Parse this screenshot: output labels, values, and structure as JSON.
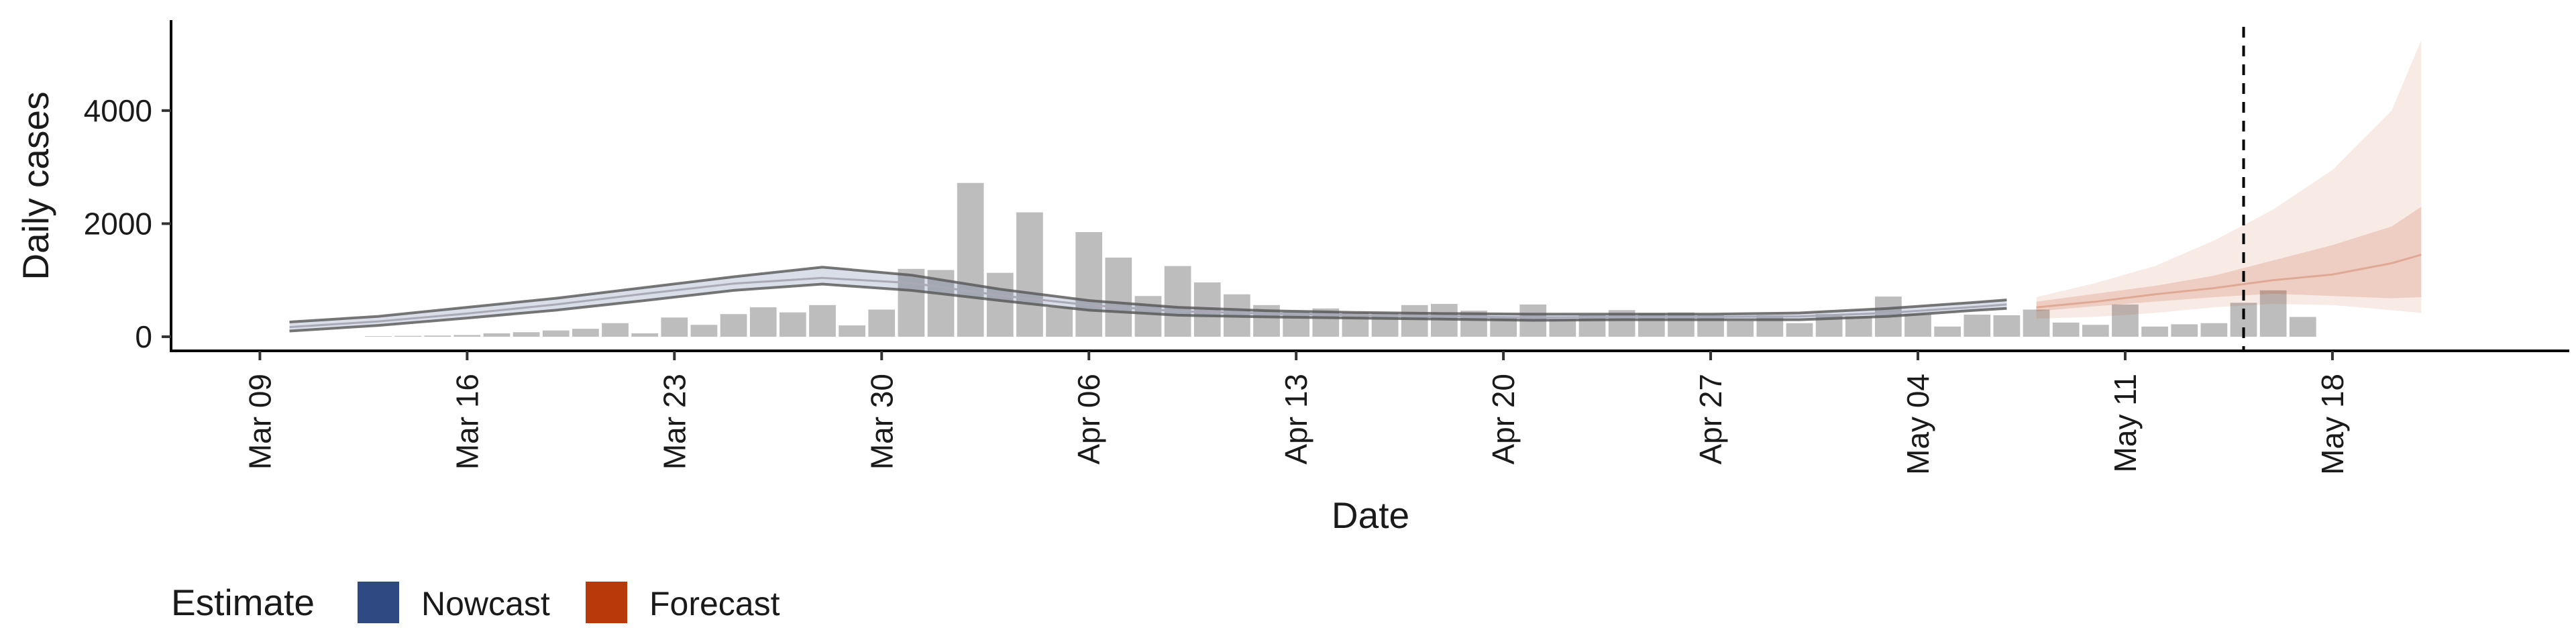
{
  "chart_data": {
    "type": "bar",
    "xlabel": "Date",
    "ylabel": "Daily cases",
    "ylim": [
      -250,
      5600
    ],
    "yticks": [
      0,
      2000,
      4000
    ],
    "x_ticks": [
      "2020-03-09",
      "2020-03-16",
      "2020-03-23",
      "2020-03-30",
      "2020-04-06",
      "2020-04-13",
      "2020-04-20",
      "2020-04-27",
      "2020-05-04",
      "2020-05-11",
      "2020-05-18"
    ],
    "x_tick_labels": [
      "Mar 09",
      "Mar 16",
      "Mar 23",
      "Mar 30",
      "Apr 06",
      "Apr 13",
      "Apr 20",
      "Apr 27",
      "May 04",
      "May 11",
      "May 18"
    ],
    "xlim": [
      "2020-03-06",
      "2020-05-26"
    ],
    "grid": false,
    "legend_position": "bottom-left",
    "colors": {
      "bars": "#bdbdbd",
      "nowcast": "#2f4a82",
      "forecast": "#b83a0b",
      "median_line": "#555555"
    },
    "vertical_line_date": "2020-05-15",
    "bars": {
      "start_date": "2020-03-13",
      "values": [
        10,
        15,
        20,
        30,
        60,
        80,
        110,
        140,
        240,
        60,
        340,
        210,
        400,
        520,
        430,
        560,
        200,
        480,
        1200,
        1180,
        2720,
        1130,
        2200,
        520,
        1850,
        1400,
        720,
        1250,
        960,
        750,
        560,
        440,
        500,
        430,
        420,
        560,
        580,
        460,
        360,
        570,
        310,
        380,
        470,
        420,
        430,
        380,
        280,
        380,
        240,
        400,
        360,
        710,
        400,
        180,
        390,
        380,
        480,
        250,
        210,
        570,
        180,
        220,
        240,
        600,
        820,
        350
      ]
    },
    "series": [
      {
        "name": "Nowcast",
        "x": [
          "2020-03-10",
          "2020-03-13",
          "2020-03-16",
          "2020-03-19",
          "2020-03-22",
          "2020-03-25",
          "2020-03-28",
          "2020-03-31",
          "2020-04-03",
          "2020-04-06",
          "2020-04-09",
          "2020-04-12",
          "2020-04-15",
          "2020-04-18",
          "2020-04-21",
          "2020-04-24",
          "2020-04-27",
          "2020-04-30",
          "2020-05-03",
          "2020-05-06",
          "2020-05-07"
        ],
        "lower": [
          100,
          200,
          330,
          470,
          640,
          820,
          930,
          820,
          640,
          470,
          380,
          350,
          330,
          310,
          290,
          300,
          300,
          300,
          360,
          470,
          500
        ],
        "median": [
          170,
          270,
          410,
          570,
          760,
          940,
          1040,
          950,
          730,
          560,
          450,
          410,
          380,
          360,
          340,
          350,
          350,
          360,
          420,
          530,
          570
        ],
        "upper": [
          260,
          360,
          520,
          680,
          870,
          1060,
          1230,
          1090,
          840,
          640,
          520,
          460,
          430,
          410,
          400,
          400,
          400,
          420,
          500,
          610,
          650
        ]
      },
      {
        "name": "Forecast",
        "x": [
          "2020-05-08",
          "2020-05-10",
          "2020-05-12",
          "2020-05-14",
          "2020-05-16",
          "2020-05-18",
          "2020-05-20",
          "2020-05-21"
        ],
        "lower_outer": [
          320,
          350,
          420,
          520,
          580,
          560,
          470,
          420
        ],
        "lower_inner": [
          450,
          540,
          620,
          700,
          760,
          720,
          680,
          700
        ],
        "median": [
          520,
          620,
          750,
          860,
          1000,
          1100,
          1300,
          1450
        ],
        "upper_inner": [
          620,
          760,
          900,
          1080,
          1350,
          1620,
          1950,
          2300
        ],
        "upper_outer": [
          700,
          950,
          1250,
          1700,
          2250,
          2950,
          4000,
          5250
        ]
      }
    ],
    "legend": {
      "title": "Estimate",
      "items": [
        "Nowcast",
        "Forecast"
      ]
    }
  }
}
